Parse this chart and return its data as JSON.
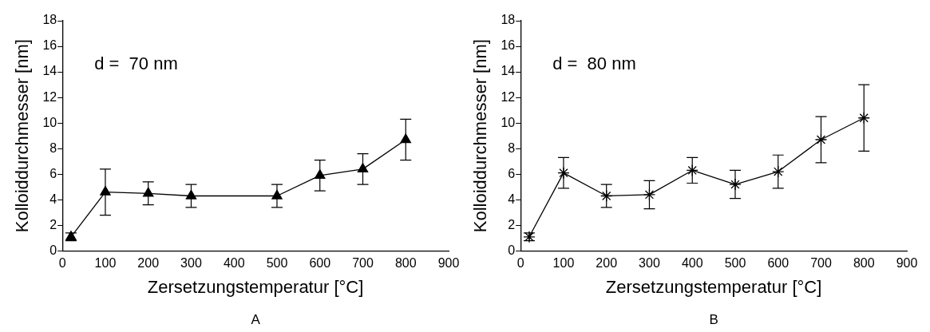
{
  "chart_data": [
    {
      "type": "line",
      "xlabel": "Zersetzungstemperatur [°C]",
      "ylabel": "Kolloiddurchmesser [nm]",
      "annotations": [
        "d =  70 nm",
        "A"
      ],
      "x": [
        20,
        100,
        200,
        300,
        500,
        600,
        700,
        800
      ],
      "series": [
        {
          "color": "#000000",
          "values": [
            1.1,
            4.6,
            4.5,
            4.3,
            4.3,
            5.9,
            6.4,
            8.7
          ],
          "errors": [
            [
              0.8,
              1.4
            ],
            [
              2.8,
              6.4
            ],
            [
              3.6,
              5.4
            ],
            [
              3.4,
              5.2
            ],
            [
              3.4,
              5.2
            ],
            [
              4.7,
              7.1
            ],
            [
              5.2,
              7.6
            ],
            [
              7.1,
              10.3
            ]
          ]
        }
      ],
      "xlim": [
        0,
        900
      ],
      "xticks": [
        0,
        100,
        200,
        300,
        400,
        500,
        600,
        700,
        800,
        900
      ],
      "ylim": [
        0,
        18
      ],
      "yticks": [
        0,
        2,
        4,
        6,
        8,
        10,
        12,
        14,
        16,
        18
      ],
      "grid": false,
      "legend": false,
      "marker": "triangle",
      "line_style": "solid"
    },
    {
      "type": "line",
      "xlabel": "Zersetzungstemperatur [°C]",
      "ylabel": "Kolloiddurchmesser [nm]",
      "annotations": [
        "d =  80 nm",
        "B"
      ],
      "x": [
        20,
        100,
        200,
        300,
        400,
        500,
        600,
        700,
        800
      ],
      "series": [
        {
          "color": "#000000",
          "values": [
            1.1,
            6.1,
            4.3,
            4.4,
            6.3,
            5.2,
            6.2,
            8.7,
            10.4
          ],
          "errors": [
            [
              0.8,
              1.4
            ],
            [
              4.9,
              7.3
            ],
            [
              3.4,
              5.2
            ],
            [
              3.3,
              5.5
            ],
            [
              5.3,
              7.3
            ],
            [
              4.1,
              6.3
            ],
            [
              4.9,
              7.5
            ],
            [
              6.9,
              10.5
            ],
            [
              7.8,
              13.0
            ]
          ]
        }
      ],
      "xlim": [
        0,
        900
      ],
      "xticks": [
        0,
        100,
        200,
        300,
        400,
        500,
        600,
        700,
        800,
        900
      ],
      "ylim": [
        0,
        18
      ],
      "yticks": [
        0,
        2,
        4,
        6,
        8,
        10,
        12,
        14,
        16,
        18
      ],
      "grid": false,
      "legend": false,
      "marker": "cross",
      "line_style": "solid"
    }
  ]
}
